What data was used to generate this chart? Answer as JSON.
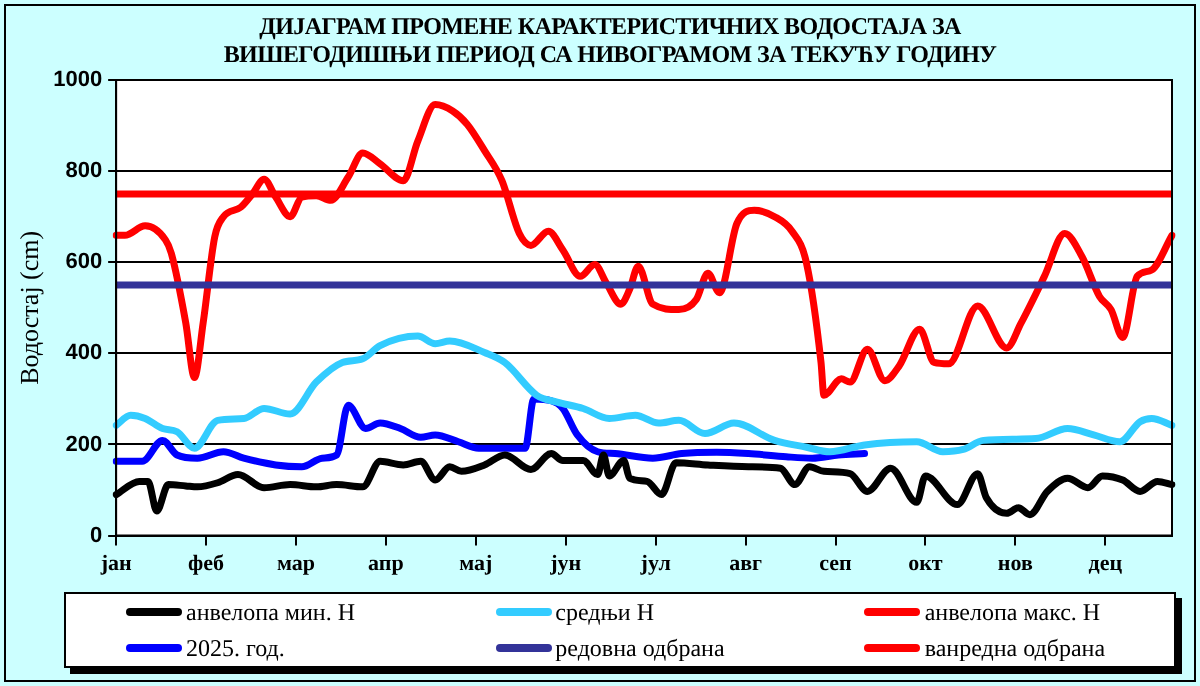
{
  "chart_data": {
    "type": "line",
    "title": "ДИЈАГРАМ ПРОМЕНЕ КАРАКТЕРИСТИЧНИХ ВОДОСТАЈА ЗА ВИШЕГОДИШЊИ ПЕРИОД СА НИВОГРАМОМ ЗА ТЕКУЋУ ГОДИНУ",
    "ylabel": "Водостај (cm)",
    "categories": [
      "јан",
      null,
      null,
      null,
      null,
      null,
      null,
      null,
      null,
      null,
      null,
      null,
      null,
      null,
      null,
      null,
      null,
      null,
      null,
      null,
      null,
      null,
      null,
      null,
      null,
      null,
      null,
      null,
      null,
      null,
      null,
      "феб",
      null,
      null,
      null,
      null,
      null,
      null,
      null,
      null,
      null,
      null,
      null,
      null,
      null,
      null,
      null,
      null,
      null,
      null,
      null,
      null,
      null,
      null,
      null,
      null,
      null,
      null,
      null,
      null,
      null,
      null,
      "мар",
      null,
      null,
      null,
      null,
      null,
      null,
      null,
      null,
      null,
      null,
      null,
      null,
      null,
      null,
      null,
      null,
      null,
      null,
      null,
      null,
      null,
      null,
      null,
      null,
      null,
      null,
      null,
      null,
      null,
      null,
      "апр",
      null,
      null,
      null,
      null,
      null,
      null,
      null,
      null,
      null,
      null,
      null,
      null,
      null,
      null,
      null,
      null,
      null,
      null,
      null,
      null,
      null,
      null,
      null,
      null,
      null,
      null,
      null,
      null,
      null,
      null,
      "мај",
      null,
      null,
      null,
      null,
      null,
      null,
      null,
      null,
      null,
      null,
      null,
      null,
      null,
      null,
      null,
      null,
      null,
      null,
      null,
      null,
      null,
      null,
      null,
      null,
      null,
      null,
      null,
      null,
      null,
      null,
      "јун",
      null,
      null,
      null,
      null,
      null,
      null,
      null,
      null,
      null,
      null,
      null,
      null,
      null,
      null,
      null,
      null,
      null,
      null,
      null,
      null,
      null,
      null,
      null,
      null,
      null,
      null,
      null,
      null,
      null,
      null,
      "јул",
      null,
      null,
      null,
      null,
      null,
      null,
      null,
      null,
      null,
      null,
      null,
      null,
      null,
      null,
      null,
      null,
      null,
      null,
      null,
      null,
      null,
      null,
      null,
      null,
      null,
      null,
      null,
      null,
      null,
      null,
      "авг",
      null,
      null,
      null,
      null,
      null,
      null,
      null,
      null,
      null,
      null,
      null,
      null,
      null,
      null,
      null,
      null,
      null,
      null,
      null,
      null,
      null,
      null,
      null,
      null,
      null,
      null,
      null,
      null,
      null,
      null,
      "сеп",
      null,
      null,
      null,
      null,
      null,
      null,
      null,
      null,
      null,
      null,
      null,
      null,
      null,
      null,
      null,
      null,
      null,
      null,
      null,
      null,
      null,
      null,
      null,
      null,
      null,
      null,
      null,
      null,
      null,
      null,
      "окт",
      null,
      null,
      null,
      null,
      null,
      null,
      null,
      null,
      null,
      null,
      null,
      null,
      null,
      null,
      null,
      null,
      null,
      null,
      null,
      null,
      null,
      null,
      null,
      null,
      null,
      null,
      null,
      null,
      null,
      null,
      "нов",
      null,
      null,
      null,
      null,
      null,
      null,
      null,
      null,
      null,
      null,
      null,
      null,
      null,
      null,
      null,
      null,
      null,
      null,
      null,
      null,
      null,
      null,
      null,
      null,
      null,
      null,
      null,
      null,
      null,
      null,
      "дец",
      null,
      null,
      null,
      null,
      null,
      null,
      null,
      null,
      null,
      null,
      null,
      null,
      null,
      null,
      null,
      null,
      null,
      null,
      null,
      null,
      null,
      null,
      null
    ],
    "ylim": [
      0,
      1000
    ],
    "yticks": [
      0,
      200,
      400,
      600,
      800,
      1000
    ],
    "grid": "y",
    "legend": "bottom",
    "marker": "none",
    "line_style": "solid",
    "series": [
      {
        "name": "анвелопа мин. H",
        "color": "#000000",
        "values": [
          90,
          null,
          null,
          null,
          null,
          null,
          null,
          null,
          119,
          null,
          null,
          119,
          null,
          null,
          54,
          null,
          null,
          null,
          112,
          null,
          null,
          null,
          null,
          null,
          109,
          null,
          null,
          null,
          107,
          null,
          null,
          null,
          null,
          null,
          null,
          116,
          null,
          null,
          null,
          null,
          null,
          null,
          134,
          null,
          null,
          null,
          null,
          null,
          null,
          null,
          null,
          105,
          null,
          null,
          null,
          null,
          null,
          null,
          null,
          null,
          112,
          null,
          null,
          null,
          null,
          null,
          null,
          null,
          null,
          107,
          null,
          null,
          null,
          null,
          null,
          null,
          112,
          null,
          null,
          null,
          null,
          null,
          null,
          null,
          null,
          107,
          null,
          null,
          null,
          null,
          null,
          163,
          null,
          null,
          null,
          null,
          null,
          null,
          null,
          155,
          null,
          null,
          null,
          null,
          null,
          163,
          null,
          null,
          null,
          null,
          122,
          null,
          null,
          null,
          null,
          151,
          null,
          null,
          null,
          141,
          null,
          null,
          null,
          null,
          null,
          null,
          null,
          155,
          null,
          null,
          null,
          null,
          null,
          null,
          177,
          null,
          null,
          null,
          null,
          null,
          null,
          null,
          null,
          145,
          null,
          null,
          null,
          null,
          null,
          null,
          180,
          null,
          null,
          null,
          165,
          null,
          null,
          null,
          null,
          null,
          null,
          165,
          null,
          null,
          null,
          null,
          134,
          null,
          177,
          null,
          131,
          null,
          null,
          null,
          null,
          165,
          null,
          126,
          null,
          null,
          null,
          null,
          null,
          119,
          null,
          null,
          null,
          null,
          90,
          null,
          null,
          null,
          null,
          160,
          null,
          null,
          null,
          null,
          null,
          null,
          null,
          null,
          null,
          null,
          155,
          null,
          null,
          null,
          null,
          null,
          null,
          null,
          null,
          null,
          null,
          null,
          null,
          null,
          151,
          null,
          null,
          null,
          null,
          null,
          null,
          null,
          null,
          null,
          null,
          148,
          null,
          null,
          null,
          null,
          112,
          null,
          null,
          null,
          null,
          151,
          null,
          null,
          null,
          null,
          141,
          null,
          null,
          null,
          null,
          null,
          null,
          null,
          null,
          136,
          null,
          null,
          null,
          null,
          null,
          97,
          null,
          null,
          null,
          null,
          null,
          null,
          null,
          148,
          null,
          null,
          null,
          null,
          null,
          null,
          null,
          null,
          73,
          null,
          null,
          131,
          null,
          null,
          null,
          null,
          null,
          null,
          null,
          null,
          null,
          null,
          68,
          null,
          null,
          null,
          null,
          null,
          null,
          136,
          null,
          null,
          83,
          null,
          null,
          null,
          null,
          null,
          null,
          49,
          null,
          null,
          null,
          61,
          null,
          null,
          null,
          46,
          null,
          null,
          null,
          null,
          null,
          97,
          null,
          null,
          null,
          null,
          null,
          null,
          126,
          null,
          null,
          null,
          null,
          null,
          null,
          105,
          null,
          null,
          null,
          null,
          131,
          null,
          null,
          null,
          null,
          null,
          null,
          122,
          null,
          null,
          null,
          null,
          null,
          97,
          null,
          null,
          null,
          null,
          null,
          119,
          null,
          null,
          null,
          null,
          112
        ]
      },
      {
        "name": "средњи H",
        "color": "#33ccff",
        "values": [
          242,
          null,
          null,
          null,
          null,
          264,
          null,
          null,
          null,
          null,
          257,
          null,
          null,
          null,
          null,
          null,
          235,
          null,
          null,
          null,
          null,
          228,
          null,
          null,
          null,
          null,
          null,
          192,
          null,
          null,
          null,
          null,
          null,
          null,
          null,
          253,
          null,
          null,
          null,
          null,
          null,
          null,
          null,
          null,
          257,
          null,
          null,
          null,
          null,
          null,
          null,
          279,
          null,
          null,
          null,
          null,
          null,
          null,
          null,
          null,
          267,
          null,
          null,
          null,
          null,
          null,
          null,
          null,
          null,
          337,
          null,
          null,
          null,
          null,
          null,
          null,
          null,
          null,
          380,
          null,
          null,
          null,
          null,
          null,
          null,
          388,
          null,
          null,
          null,
          null,
          null,
          417,
          null,
          null,
          null,
          null,
          null,
          null,
          null,
          null,
          null,
          null,
          null,
          null,
          438,
          null,
          null,
          null,
          null,
          null,
          421,
          null,
          null,
          null,
          null,
          427,
          null,
          null,
          null,
          null,
          null,
          null,
          null,
          null,
          null,
          null,
          null,
          402,
          null,
          null,
          null,
          null,
          null,
          null,
          380,
          null,
          null,
          null,
          null,
          null,
          null,
          null,
          null,
          null,
          null,
          308,
          null,
          null,
          null,
          null,
          null,
          null,
          293,
          null,
          null,
          null,
          null,
          null,
          null,
          null,
          null,
          279,
          null,
          null,
          null,
          null,
          null,
          null,
          null,
          null,
          257,
          null,
          null,
          null,
          null,
          null,
          null,
          null,
          null,
          264,
          null,
          null,
          null,
          null,
          null,
          null,
          null,
          247,
          null,
          null,
          null,
          null,
          null,
          null,
          253,
          null,
          null,
          null,
          null,
          null,
          null,
          null,
          null,
          224,
          null,
          null,
          null,
          null,
          null,
          null,
          null,
          null,
          null,
          247,
          null,
          null,
          null,
          null,
          null,
          null,
          null,
          null,
          null,
          null,
          null,
          null,
          null,
          209,
          null,
          null,
          null,
          null,
          null,
          null,
          null,
          null,
          null,
          null,
          194,
          null,
          null,
          null,
          null,
          null,
          null,
          null,
          184,
          null,
          null,
          null,
          null,
          null,
          null,
          null,
          null,
          null,
          null,
          null,
          199,
          null,
          null,
          null,
          null,
          null,
          null,
          null,
          null,
          null,
          null,
          null,
          null,
          null,
          null,
          null,
          null,
          null,
          206,
          null,
          null,
          null,
          null,
          null,
          null,
          null,
          null,
          184,
          null,
          null,
          null,
          null,
          null,
          null,
          189,
          null,
          null,
          null,
          null,
          null,
          null,
          209,
          null,
          null,
          null,
          null,
          null,
          null,
          null,
          null,
          null,
          null,
          null,
          null,
          null,
          null,
          null,
          null,
          null,
          213,
          null,
          null,
          null,
          null,
          null,
          null,
          null,
          null,
          null,
          null,
          235,
          null,
          null,
          null,
          null,
          null,
          null,
          null,
          null,
          221,
          null,
          null,
          null,
          null,
          null,
          null,
          null,
          null,
          206,
          null,
          null,
          null,
          null,
          null,
          null,
          250,
          null,
          null,
          null,
          257,
          null,
          null,
          null,
          null,
          null,
          null,
          242
        ]
      },
      {
        "name": "анвелопа макс. H",
        "color": "#ff0000",
        "values": [
          659,
          null,
          null,
          659,
          null,
          null,
          null,
          null,
          null,
          null,
          680,
          null,
          null,
          null,
          null,
          null,
          null,
          649,
          null,
          620,
          null,
          null,
          null,
          null,
          467,
          null,
          null,
          347,
          null,
          null,
          467,
          null,
          null,
          null,
          656,
          null,
          null,
          700,
          null,
          null,
          null,
          null,
          null,
          721,
          null,
          null,
          null,
          750,
          null,
          null,
          null,
          782,
          null,
          null,
          null,
          743,
          null,
          null,
          null,
          null,
          700,
          null,
          null,
          null,
          743,
          null,
          null,
          null,
          null,
          746,
          null,
          null,
          null,
          null,
          736,
          null,
          null,
          null,
          null,
          null,
          787,
          null,
          null,
          null,
          null,
          840,
          null,
          null,
          null,
          null,
          null,
          816,
          null,
          null,
          null,
          null,
          null,
          null,
          null,
          779,
          null,
          null,
          null,
          null,
          866,
          null,
          null,
          null,
          null,
          null,
          946,
          null,
          null,
          null,
          null,
          null,
          932,
          null,
          null,
          null,
          null,
          903,
          null,
          null,
          null,
          null,
          null,
          845,
          null,
          null,
          null,
          null,
          null,
          779,
          null,
          null,
          null,
          null,
          null,
          663,
          null,
          null,
          null,
          637,
          null,
          null,
          null,
          null,
          null,
          668,
          null,
          null,
          null,
          null,
          627,
          null,
          null,
          null,
          null,
          null,
          569,
          null,
          null,
          null,
          null,
          595,
          null,
          null,
          null,
          554,
          null,
          null,
          null,
          null,
          508,
          null,
          null,
          540,
          null,
          null,
          591,
          null,
          null,
          null,
          null,
          508,
          null,
          null,
          null,
          null,
          null,
          null,
          null,
          null,
          496,
          null,
          null,
          null,
          null,
          null,
          518,
          null,
          null,
          null,
          576,
          null,
          null,
          null,
          533,
          null,
          null,
          null,
          null,
          null,
          685,
          null,
          null,
          null,
          null,
          null,
          714,
          null,
          null,
          null,
          null,
          null,
          null,
          700,
          null,
          null,
          null,
          null,
          null,
          668,
          null,
          null,
          null,
          null,
          598,
          null,
          null,
          null,
          null,
          380,
          308,
          null,
          null,
          null,
          null,
          null,
          344,
          null,
          null,
          337,
          null,
          null,
          null,
          null,
          null,
          409,
          null,
          null,
          null,
          null,
          null,
          340,
          null,
          null,
          null,
          null,
          373,
          null,
          null,
          null,
          null,
          null,
          null,
          453,
          null,
          null,
          null,
          null,
          380,
          null,
          null,
          null,
          null,
          377,
          null,
          null,
          null,
          null,
          null,
          null,
          null,
          null,
          null,
          504,
          null,
          null,
          null,
          null,
          null,
          null,
          null,
          null,
          null,
          412,
          null,
          null,
          null,
          null,
          467,
          null,
          null,
          null,
          null,
          null,
          null,
          null,
          569,
          null,
          null,
          null,
          null,
          null,
          null,
          663,
          null,
          null,
          null,
          null,
          null,
          612,
          null,
          null,
          null,
          null,
          null,
          525,
          null,
          null,
          null,
          496,
          null,
          null,
          null,
          435,
          null,
          null,
          null,
          null,
          569,
          null,
          null,
          null,
          null,
          583,
          null,
          null,
          null,
          null,
          null,
          null,
          659
        ]
      },
      {
        "name": "2025. год.",
        "color": "#0000ff",
        "values": [
          163,
          null,
          null,
          null,
          null,
          null,
          null,
          null,
          null,
          163,
          null,
          null,
          null,
          null,
          null,
          null,
          209,
          null,
          null,
          null,
          null,
          177,
          null,
          null,
          null,
          null,
          null,
          null,
          170,
          null,
          null,
          null,
          null,
          null,
          null,
          null,
          null,
          184,
          null,
          null,
          null,
          null,
          null,
          null,
          170,
          null,
          null,
          null,
          null,
          null,
          null,
          null,
          null,
          null,
          null,
          155,
          null,
          null,
          null,
          null,
          null,
          null,
          null,
          null,
          151,
          null,
          null,
          null,
          null,
          null,
          null,
          170,
          null,
          null,
          null,
          null,
          177,
          null,
          null,
          null,
          286,
          null,
          null,
          null,
          null,
          null,
          235,
          null,
          null,
          null,
          null,
          247,
          null,
          null,
          null,
          null,
          null,
          null,
          235,
          null,
          null,
          null,
          null,
          null,
          null,
          216,
          null,
          null,
          null,
          null,
          221,
          null,
          null,
          null,
          null,
          null,
          null,
          null,
          206,
          null,
          null,
          null,
          null,
          null,
          null,
          192,
          null,
          null,
          null,
          null,
          null,
          null,
          null,
          null,
          192,
          null,
          null,
          null,
          null,
          null,
          null,
          192,
          null,
          null,
          300,
          null,
          null,
          null,
          null,
          null,
          296,
          null,
          null,
          null,
          279,
          null,
          null,
          null,
          null,
          221,
          null,
          null,
          null,
          null,
          null,
          null,
          184,
          null,
          null,
          null,
          null,
          null,
          180,
          null,
          null,
          null,
          null,
          null,
          null,
          null,
          null,
          null,
          null,
          null,
          null,
          170,
          null,
          null,
          null,
          null,
          null,
          null,
          null,
          null,
          null,
          180,
          null,
          null,
          null,
          null,
          null,
          null,
          null,
          null,
          null,
          null,
          null,
          183,
          null,
          null,
          null,
          null,
          null,
          null,
          null,
          null,
          null,
          null,
          180,
          null,
          null,
          null,
          null,
          null,
          null,
          null,
          null,
          null,
          null,
          null,
          null,
          173,
          null,
          null,
          null,
          null,
          null,
          null,
          null,
          null,
          170,
          null,
          null,
          null,
          null,
          null,
          null,
          null,
          null,
          177,
          null,
          null,
          null,
          null,
          null,
          null,
          null,
          null,
          180,
          null,
          null,
          null,
          null,
          null,
          null,
          null,
          null,
          null,
          null,
          null,
          null,
          null,
          null,
          null,
          null,
          null,
          null,
          null,
          null,
          null,
          null,
          null,
          null,
          null,
          null,
          null,
          null,
          null,
          null,
          null,
          null,
          null,
          null,
          null,
          null,
          null,
          null,
          null,
          null,
          null,
          null,
          null,
          null,
          null,
          null,
          null,
          null,
          null,
          null,
          null,
          null,
          null,
          null,
          null,
          null,
          null,
          null,
          null,
          null,
          null,
          null,
          null,
          null,
          null,
          null,
          null,
          null,
          null,
          null,
          null,
          null,
          null,
          null,
          null,
          null,
          null,
          null,
          null,
          null,
          null,
          null,
          null,
          null,
          null,
          null,
          null,
          null,
          null,
          null,
          null,
          null,
          null,
          null,
          null,
          null,
          null,
          null,
          null,
          null,
          null,
          null,
          null,
          null,
          null,
          null
        ]
      }
    ],
    "ref_lines": [
      {
        "axis": "y",
        "value": 550,
        "label": "редовна одбрана",
        "color": "#333399"
      },
      {
        "axis": "y",
        "value": 750,
        "label": "ванредна одбрана",
        "color": "#ff0000"
      }
    ]
  }
}
